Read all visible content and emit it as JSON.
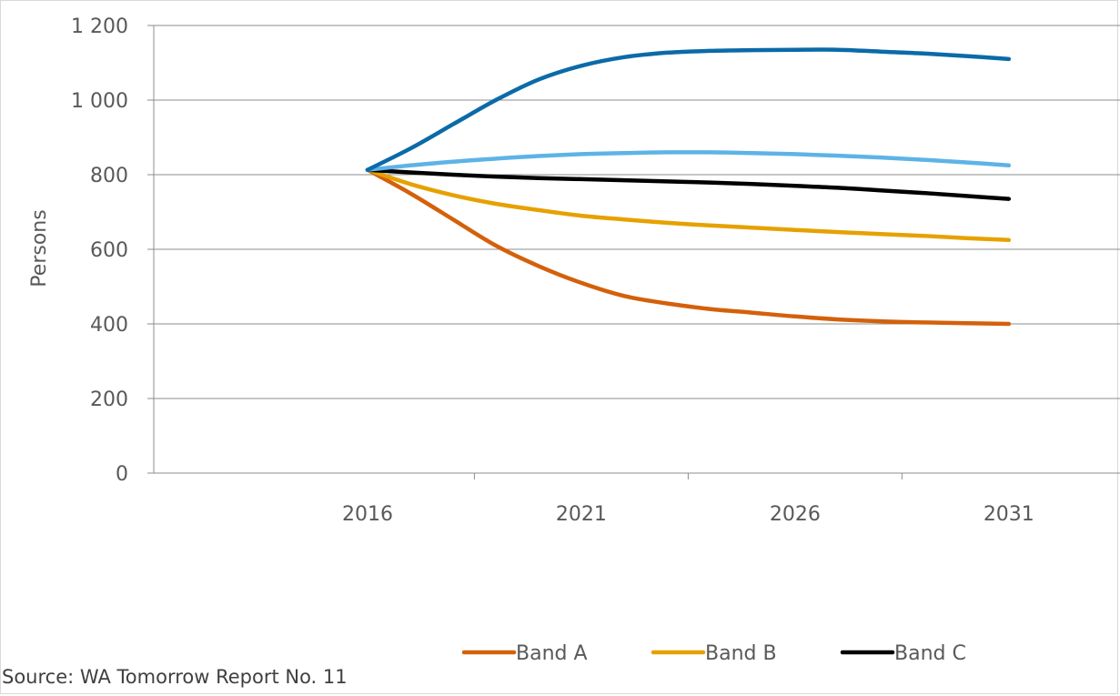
{
  "chart_data": {
    "type": "line",
    "title": "",
    "xlabel": "",
    "ylabel": "Persons",
    "x": [
      2016,
      2017,
      2018,
      2019,
      2020,
      2021,
      2022,
      2023,
      2024,
      2025,
      2026,
      2027,
      2028,
      2029,
      2030,
      2031
    ],
    "x_ticks": [
      2016,
      2021,
      2026,
      2031
    ],
    "x_tick_labels": [
      "2016",
      "2021",
      "2026",
      "2031"
    ],
    "xlim": [
      2011,
      2033.6
    ],
    "ylim": [
      0,
      1200
    ],
    "y_ticks": [
      0,
      200,
      400,
      600,
      800,
      1000,
      1200
    ],
    "y_tick_labels": [
      "0",
      "200",
      "400",
      "600",
      "800",
      "1 000",
      "1 200"
    ],
    "grid": "horizontal",
    "legend_position": "bottom",
    "series": [
      {
        "name": "Band A",
        "color": "#d4600b",
        "values": [
          813,
          750,
          680,
          610,
          555,
          510,
          475,
          455,
          440,
          430,
          420,
          412,
          407,
          404,
          402,
          400
        ]
      },
      {
        "name": "Band B",
        "color": "#e6a100",
        "values": [
          813,
          775,
          745,
          722,
          705,
          690,
          680,
          671,
          664,
          658,
          652,
          646,
          641,
          636,
          630,
          625
        ]
      },
      {
        "name": "Band C",
        "color": "#000000",
        "values": [
          813,
          806,
          800,
          795,
          791,
          788,
          785,
          782,
          779,
          775,
          770,
          765,
          758,
          751,
          743,
          735
        ]
      },
      {
        "color": "#5eb3e6",
        "values": [
          813,
          825,
          835,
          843,
          850,
          855,
          858,
          860,
          860,
          858,
          855,
          851,
          846,
          840,
          833,
          825
        ]
      },
      {
        "color": "#0b6aa8",
        "values": [
          813,
          870,
          935,
          1000,
          1055,
          1092,
          1115,
          1127,
          1132,
          1134,
          1135,
          1135,
          1130,
          1125,
          1118,
          1110
        ]
      }
    ],
    "source": "Source: WA Tomorrow Report No. 11"
  }
}
